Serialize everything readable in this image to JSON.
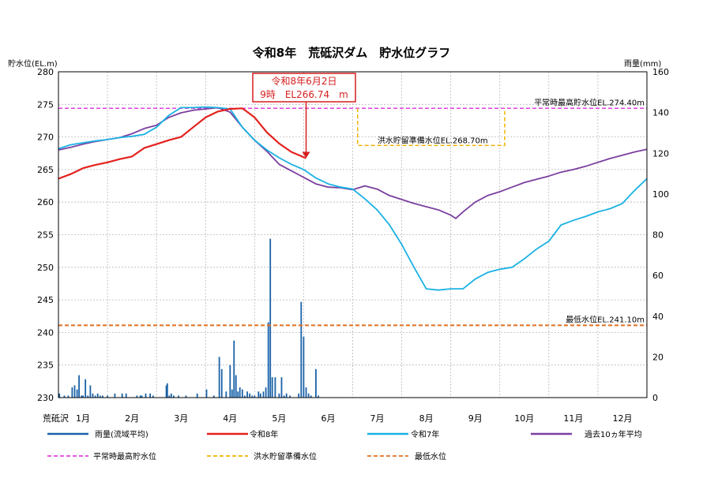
{
  "chart_data": {
    "type": "line",
    "title": "令和8年　荒砥沢ダム　貯水位グラフ",
    "ylabel_left": "貯水位(EL.m)",
    "ylabel_right": "雨量(mm)",
    "x_axis_name": "荒砥沢",
    "months": [
      "1月",
      "2月",
      "3月",
      "4月",
      "5月",
      "6月",
      "7月",
      "8月",
      "9月",
      "10月",
      "11月",
      "12月"
    ],
    "left_axis": {
      "min": 230,
      "max": 280,
      "ticks": [
        230,
        235,
        240,
        245,
        250,
        255,
        260,
        265,
        270,
        275,
        280
      ]
    },
    "right_axis": {
      "min": 0,
      "max": 160,
      "ticks": [
        0,
        20,
        40,
        60,
        80,
        100,
        120,
        140,
        160
      ]
    },
    "grid": true,
    "callout": {
      "line1": "令和8年6月2日",
      "line2": "9時　EL266.74　m",
      "value": 266.74
    },
    "reference_lines": [
      {
        "key": "max",
        "label": "平常時最高貯水位EL.274.40m",
        "value": 274.4,
        "color": "#e040e0"
      },
      {
        "key": "flood",
        "label": "洪水貯留準備水位EL.268.70m",
        "value": 268.7,
        "color": "#f0b400"
      },
      {
        "key": "min",
        "label": "最低水位EL.241.10m",
        "value": 241.1,
        "color": "#e07020"
      }
    ],
    "series": [
      {
        "key": "r8",
        "name": "令和8年",
        "color": "#e3211e",
        "points": [
          [
            0,
            263.6
          ],
          [
            0.25,
            264.3
          ],
          [
            0.5,
            265.2
          ],
          [
            0.75,
            265.7
          ],
          [
            1,
            266.1
          ],
          [
            1.25,
            266.6
          ],
          [
            1.5,
            267.0
          ],
          [
            1.75,
            268.3
          ],
          [
            2,
            268.9
          ],
          [
            2.25,
            269.5
          ],
          [
            2.5,
            270.0
          ],
          [
            2.75,
            271.5
          ],
          [
            3,
            273.0
          ],
          [
            3.25,
            273.9
          ],
          [
            3.5,
            274.3
          ],
          [
            3.75,
            274.4
          ],
          [
            4,
            273.0
          ],
          [
            4.25,
            270.7
          ],
          [
            4.5,
            269.0
          ],
          [
            4.75,
            267.7
          ],
          [
            5.0,
            266.9
          ],
          [
            5.05,
            266.74
          ]
        ]
      },
      {
        "key": "r7",
        "name": "令和7年",
        "color": "#1ab2e4",
        "points": [
          [
            0,
            268.2
          ],
          [
            0.25,
            268.8
          ],
          [
            0.5,
            269.1
          ],
          [
            0.75,
            269.4
          ],
          [
            1,
            269.6
          ],
          [
            1.25,
            269.9
          ],
          [
            1.5,
            270.1
          ],
          [
            1.75,
            270.4
          ],
          [
            2,
            271.5
          ],
          [
            2.25,
            273.3
          ],
          [
            2.5,
            274.5
          ],
          [
            2.75,
            274.5
          ],
          [
            3,
            274.6
          ],
          [
            3.25,
            274.5
          ],
          [
            3.5,
            274.3
          ],
          [
            3.75,
            271.5
          ],
          [
            4,
            269.5
          ],
          [
            4.25,
            268.0
          ],
          [
            4.5,
            266.8
          ],
          [
            4.75,
            265.8
          ],
          [
            5,
            265.0
          ],
          [
            5.25,
            263.7
          ],
          [
            5.5,
            262.8
          ],
          [
            5.75,
            262.3
          ],
          [
            6,
            262.0
          ],
          [
            6.25,
            260.5
          ],
          [
            6.5,
            258.8
          ],
          [
            6.75,
            256.5
          ],
          [
            7,
            253.5
          ],
          [
            7.25,
            250.0
          ],
          [
            7.5,
            246.7
          ],
          [
            7.75,
            246.5
          ],
          [
            8,
            246.7
          ],
          [
            8.25,
            246.7
          ],
          [
            8.5,
            248.2
          ],
          [
            8.75,
            249.2
          ],
          [
            9,
            249.7
          ],
          [
            9.25,
            250.0
          ],
          [
            9.5,
            251.3
          ],
          [
            9.75,
            252.8
          ],
          [
            10,
            254.0
          ],
          [
            10.25,
            256.5
          ],
          [
            10.5,
            257.2
          ],
          [
            10.75,
            257.8
          ],
          [
            11,
            258.5
          ],
          [
            11.25,
            259.0
          ],
          [
            11.5,
            259.8
          ],
          [
            11.75,
            261.8
          ],
          [
            12,
            263.6
          ]
        ]
      },
      {
        "key": "avg",
        "name": "過去10ヵ年平均",
        "color": "#7b3fa0",
        "points": [
          [
            0,
            268.0
          ],
          [
            0.25,
            268.4
          ],
          [
            0.5,
            268.9
          ],
          [
            0.75,
            269.3
          ],
          [
            1,
            269.6
          ],
          [
            1.25,
            269.9
          ],
          [
            1.5,
            270.5
          ],
          [
            1.75,
            271.3
          ],
          [
            2,
            271.8
          ],
          [
            2.25,
            273.0
          ],
          [
            2.5,
            273.7
          ],
          [
            2.75,
            274.1
          ],
          [
            3,
            274.3
          ],
          [
            3.25,
            274.5
          ],
          [
            3.5,
            273.8
          ],
          [
            3.75,
            271.5
          ],
          [
            4,
            269.5
          ],
          [
            4.25,
            267.8
          ],
          [
            4.5,
            265.8
          ],
          [
            4.75,
            264.8
          ],
          [
            5,
            263.8
          ],
          [
            5.25,
            262.8
          ],
          [
            5.5,
            262.3
          ],
          [
            5.75,
            262.2
          ],
          [
            6,
            261.9
          ],
          [
            6.25,
            262.5
          ],
          [
            6.5,
            262.0
          ],
          [
            6.75,
            261.0
          ],
          [
            7,
            260.4
          ],
          [
            7.25,
            259.8
          ],
          [
            7.5,
            259.3
          ],
          [
            7.75,
            258.8
          ],
          [
            8,
            258.0
          ],
          [
            8.1,
            257.5
          ],
          [
            8.25,
            258.5
          ],
          [
            8.5,
            260.0
          ],
          [
            8.75,
            261.0
          ],
          [
            9,
            261.6
          ],
          [
            9.25,
            262.3
          ],
          [
            9.5,
            263.0
          ],
          [
            9.75,
            263.5
          ],
          [
            10,
            264.0
          ],
          [
            10.25,
            264.6
          ],
          [
            10.5,
            265.0
          ],
          [
            10.75,
            265.5
          ],
          [
            11,
            266.1
          ],
          [
            11.25,
            266.7
          ],
          [
            11.5,
            267.2
          ],
          [
            11.75,
            267.7
          ],
          [
            12,
            268.1
          ]
        ]
      },
      {
        "key": "rain",
        "name": "雨量(流域平均)",
        "color": "#1a62a8",
        "bars": [
          [
            0.02,
            2
          ],
          [
            0.12,
            1
          ],
          [
            0.2,
            1
          ],
          [
            0.28,
            5
          ],
          [
            0.33,
            6
          ],
          [
            0.38,
            4
          ],
          [
            0.42,
            11
          ],
          [
            0.47,
            1
          ],
          [
            0.5,
            1
          ],
          [
            0.55,
            9
          ],
          [
            0.6,
            1
          ],
          [
            0.65,
            6
          ],
          [
            0.7,
            2
          ],
          [
            0.75,
            1
          ],
          [
            0.8,
            2
          ],
          [
            0.85,
            1
          ],
          [
            0.9,
            1
          ],
          [
            1.0,
            1
          ],
          [
            1.15,
            2
          ],
          [
            1.3,
            2
          ],
          [
            1.38,
            2
          ],
          [
            1.6,
            1
          ],
          [
            1.67,
            1
          ],
          [
            1.7,
            1
          ],
          [
            1.78,
            2
          ],
          [
            1.87,
            2
          ],
          [
            1.93,
            1
          ],
          [
            2.2,
            6
          ],
          [
            2.22,
            7
          ],
          [
            2.26,
            1
          ],
          [
            2.3,
            2
          ],
          [
            2.35,
            1
          ],
          [
            2.45,
            1
          ],
          [
            2.6,
            1
          ],
          [
            2.83,
            2
          ],
          [
            3.02,
            4
          ],
          [
            3.17,
            1
          ],
          [
            3.28,
            20
          ],
          [
            3.33,
            14
          ],
          [
            3.42,
            3
          ],
          [
            3.5,
            16
          ],
          [
            3.54,
            4
          ],
          [
            3.58,
            28
          ],
          [
            3.62,
            11
          ],
          [
            3.66,
            3
          ],
          [
            3.7,
            5
          ],
          [
            3.75,
            4
          ],
          [
            3.8,
            1
          ],
          [
            3.85,
            3
          ],
          [
            3.9,
            2
          ],
          [
            3.95,
            1
          ],
          [
            4.0,
            1
          ],
          [
            4.08,
            3
          ],
          [
            4.12,
            2
          ],
          [
            4.18,
            3
          ],
          [
            4.23,
            5
          ],
          [
            4.28,
            37
          ],
          [
            4.32,
            78
          ],
          [
            4.36,
            10
          ],
          [
            4.42,
            10
          ],
          [
            4.5,
            2
          ],
          [
            4.55,
            10
          ],
          [
            4.6,
            1
          ],
          [
            4.65,
            2
          ],
          [
            4.72,
            1
          ],
          [
            4.9,
            2
          ],
          [
            4.95,
            47
          ],
          [
            5.0,
            30
          ],
          [
            5.05,
            5
          ],
          [
            5.1,
            2
          ],
          [
            5.15,
            1
          ],
          [
            5.25,
            14
          ],
          [
            5.3,
            1
          ]
        ]
      }
    ],
    "legend": [
      {
        "key": "rain",
        "label": "雨量(流域平均)",
        "style": "solid",
        "color": "#1a62a8"
      },
      {
        "key": "r8",
        "label": "令和8年",
        "style": "solid",
        "color": "#e3211e"
      },
      {
        "key": "r7",
        "label": "令和7年",
        "style": "solid",
        "color": "#1ab2e4"
      },
      {
        "key": "avg",
        "label": "過去10ヵ年平均",
        "style": "solid",
        "color": "#7b3fa0"
      },
      {
        "key": "max",
        "label": "平常時最高貯水位",
        "style": "dashed",
        "color": "#e040e0"
      },
      {
        "key": "flood",
        "label": "洪水貯留準備水位",
        "style": "dashed",
        "color": "#f0b400"
      },
      {
        "key": "min",
        "label": "最低水位",
        "style": "dashed",
        "color": "#e07020"
      }
    ]
  }
}
